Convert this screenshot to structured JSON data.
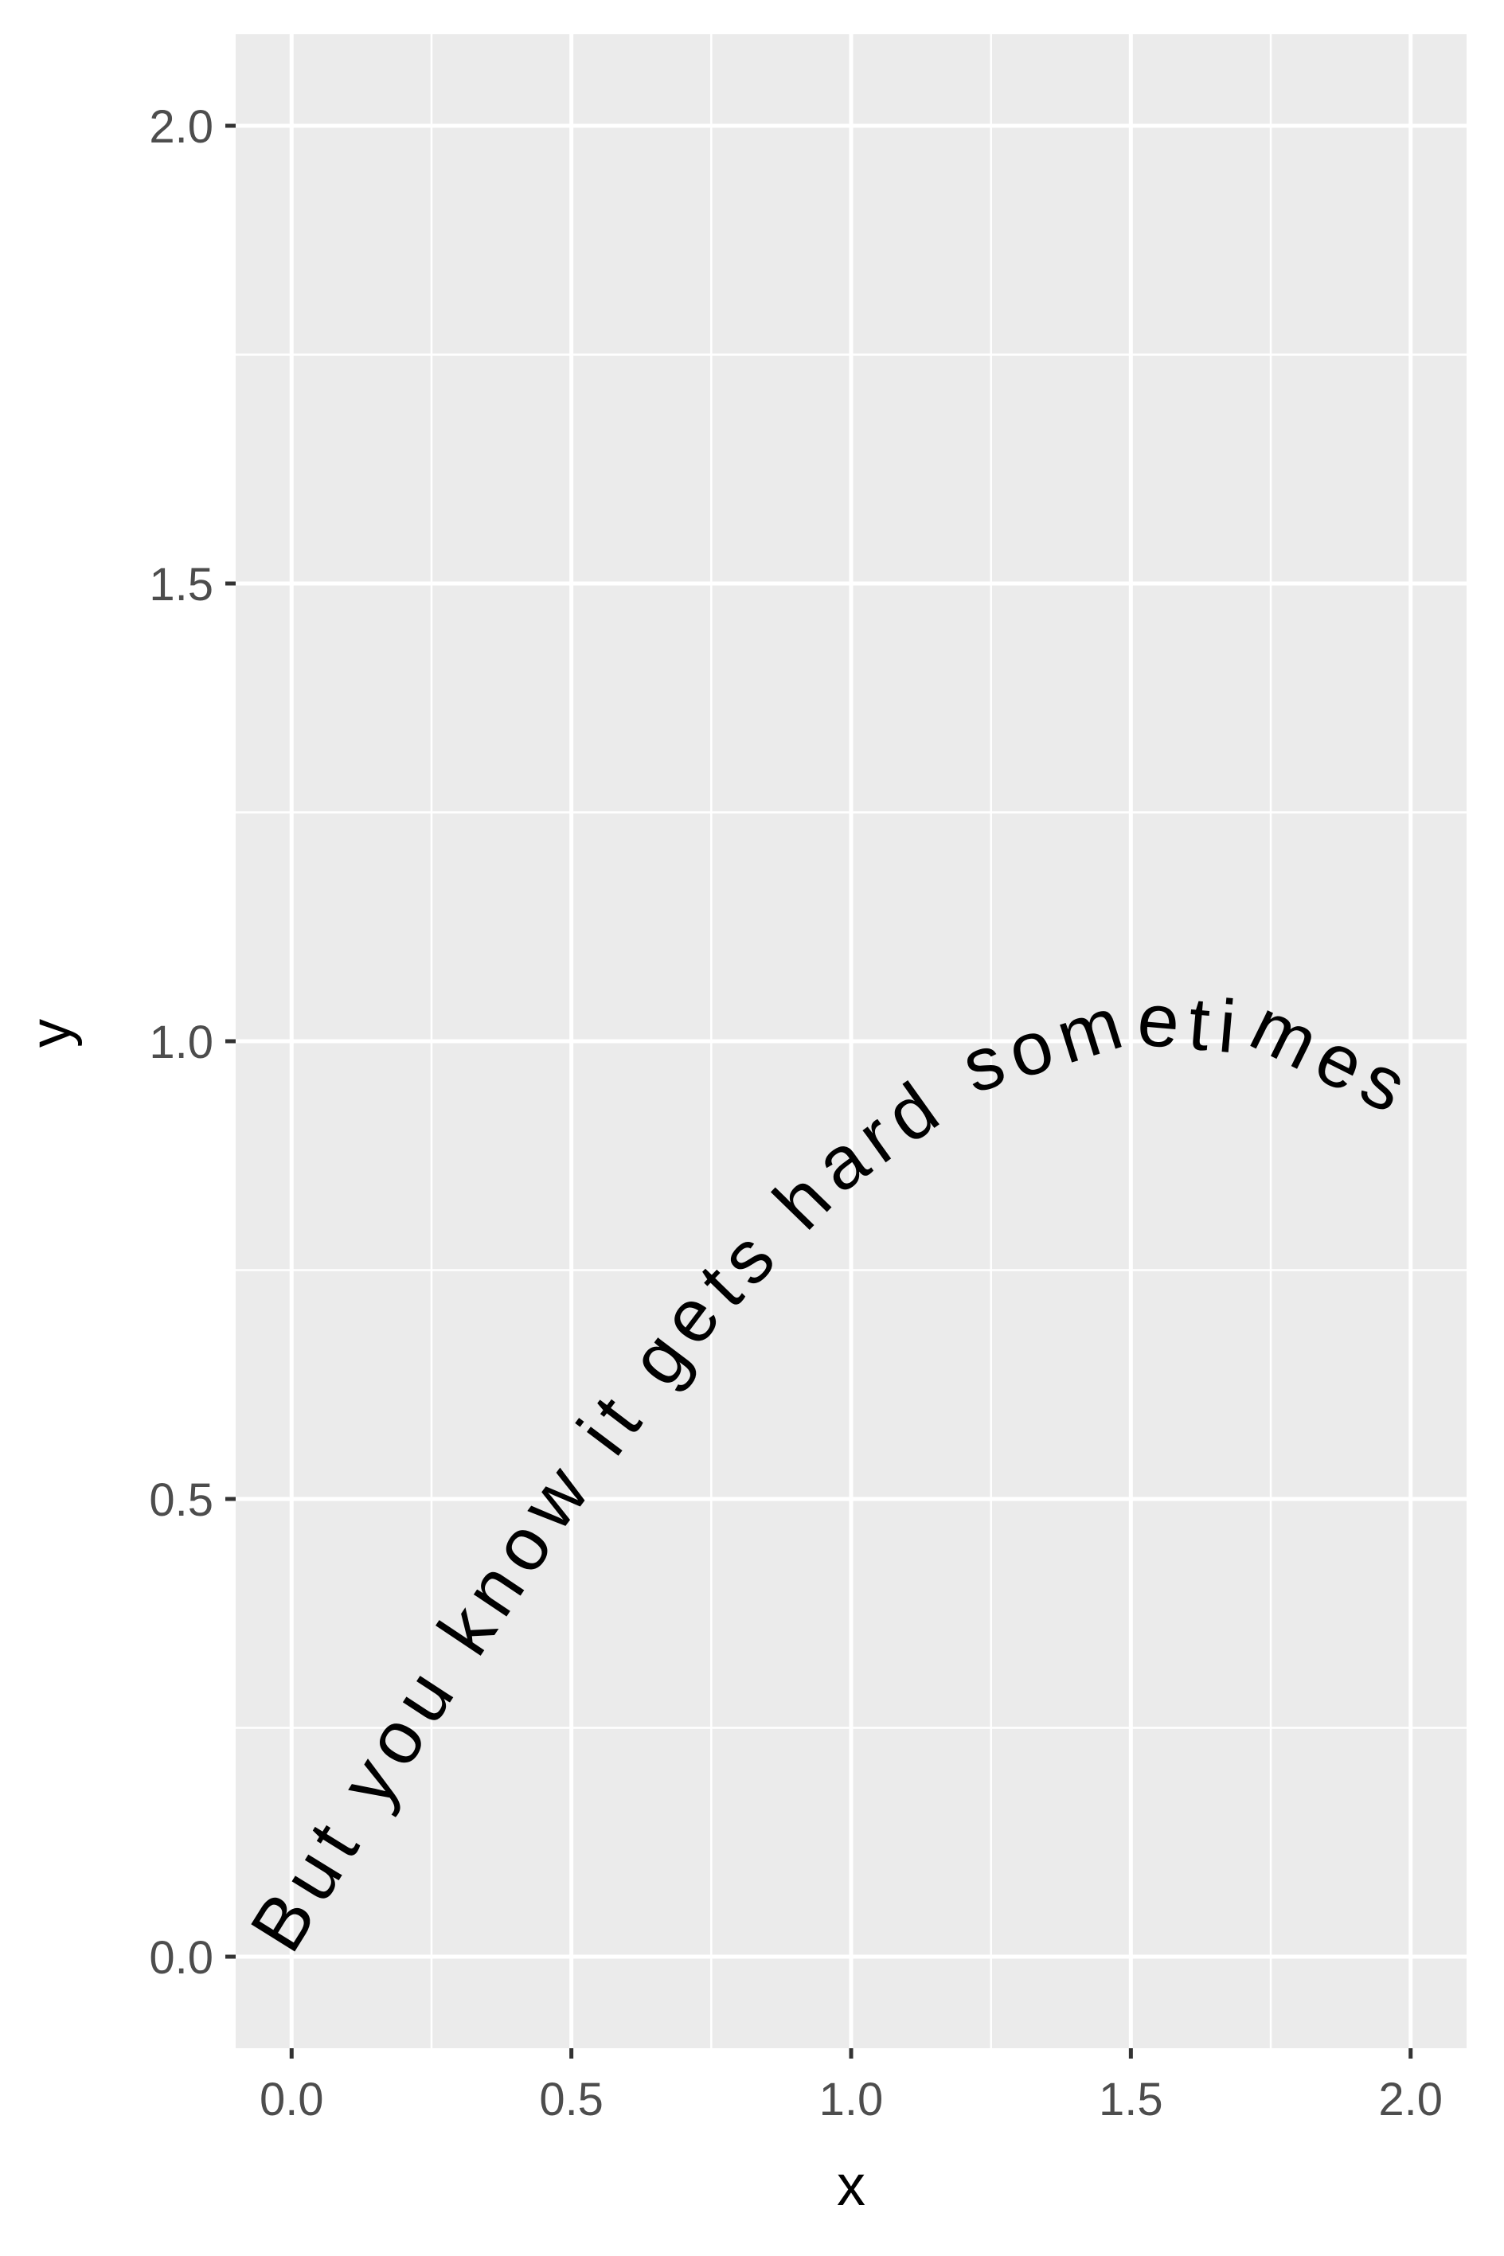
{
  "chart_data": {
    "type": "line",
    "xlabel": "x",
    "ylabel": "y",
    "xlim": [
      -0.1,
      2.1
    ],
    "ylim": [
      -0.1,
      2.1
    ],
    "x_ticks": [
      0.0,
      0.5,
      1.0,
      1.5,
      2.0
    ],
    "x_tick_labels": [
      "0.0",
      "0.5",
      "1.0",
      "1.5",
      "2.0"
    ],
    "y_ticks": [
      0.0,
      0.5,
      1.0,
      1.5,
      2.0
    ],
    "y_tick_labels": [
      "0.0",
      "0.5",
      "1.0",
      "1.5",
      "2.0"
    ],
    "x_minor": [
      0.25,
      0.75,
      1.25,
      1.75
    ],
    "y_minor": [
      0.25,
      0.75,
      1.25,
      1.75
    ],
    "grid": true,
    "legend": "none",
    "series": [
      {
        "label_text": "But you know it gets hard sometimes",
        "x": [
          0.0,
          0.25,
          0.5,
          0.75,
          1.0,
          1.25,
          1.5,
          1.75,
          2.0
        ],
        "y": [
          0.0,
          0.247,
          0.479,
          0.682,
          0.841,
          0.949,
          0.997,
          0.984,
          0.909
        ]
      }
    ],
    "colors": {
      "panel": "#ebebeb",
      "grid": "#ffffff",
      "tick": "#333333",
      "tick_label": "#4d4d4d",
      "text": "#000000"
    }
  }
}
